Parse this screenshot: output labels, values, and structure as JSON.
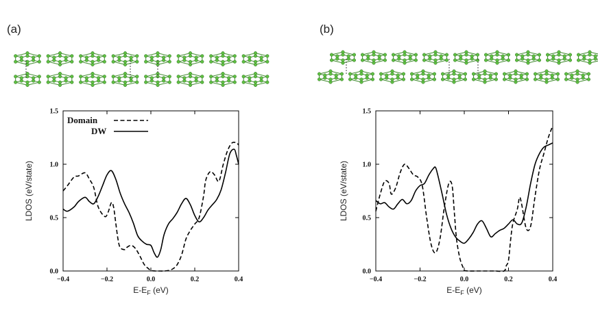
{
  "figure": {
    "panels": [
      {
        "label": "(a)"
      },
      {
        "label": "(b)"
      }
    ],
    "colors": {
      "curve": "#000000",
      "atom": "#5fc043",
      "bond": "#3e8a2c"
    }
  },
  "chart_data": [
    {
      "type": "line",
      "panel": "(a)",
      "xlabel": "E-E",
      "xlabel_sub": "F",
      "xlabel_unit": " (eV)",
      "ylabel": "LDOS (eV/state)",
      "xlim": [
        -0.4,
        0.4
      ],
      "ylim": [
        0.0,
        1.5
      ],
      "xticks": [
        -0.4,
        -0.2,
        0.0,
        0.2,
        0.4
      ],
      "xtick_labels": [
        "−0.4",
        "−0.2",
        "0.0",
        "0.2",
        "0.4"
      ],
      "yticks": [
        0.0,
        0.5,
        1.0,
        1.5
      ],
      "ytick_labels": [
        "0.0",
        "0.5",
        "1.0",
        "1.5"
      ],
      "legend": "top-left",
      "series": [
        {
          "name": "Domain",
          "style": "dashed",
          "x": [
            -0.4,
            -0.38,
            -0.35,
            -0.33,
            -0.3,
            -0.28,
            -0.26,
            -0.24,
            -0.21,
            -0.195,
            -0.18,
            -0.17,
            -0.16,
            -0.15,
            -0.14,
            -0.12,
            -0.11,
            -0.09,
            -0.07,
            -0.05,
            -0.03,
            -0.01,
            0.0,
            0.02,
            0.04,
            0.06,
            0.08,
            0.1,
            0.12,
            0.14,
            0.16,
            0.18,
            0.2,
            0.22,
            0.24,
            0.25,
            0.27,
            0.29,
            0.31,
            0.33,
            0.35,
            0.37,
            0.39,
            0.4
          ],
          "y": [
            0.75,
            0.8,
            0.88,
            0.89,
            0.92,
            0.86,
            0.78,
            0.6,
            0.51,
            0.55,
            0.64,
            0.6,
            0.45,
            0.3,
            0.22,
            0.2,
            0.22,
            0.24,
            0.21,
            0.14,
            0.06,
            0.02,
            0.005,
            0.0,
            0.0,
            0.0,
            0.005,
            0.02,
            0.06,
            0.15,
            0.3,
            0.38,
            0.44,
            0.5,
            0.7,
            0.85,
            0.93,
            0.9,
            0.84,
            1.0,
            1.13,
            1.2,
            1.2,
            1.18
          ]
        },
        {
          "name": "DW",
          "style": "solid",
          "x": [
            -0.4,
            -0.38,
            -0.35,
            -0.33,
            -0.3,
            -0.28,
            -0.26,
            -0.24,
            -0.22,
            -0.2,
            -0.18,
            -0.16,
            -0.14,
            -0.12,
            -0.1,
            -0.08,
            -0.06,
            -0.04,
            -0.02,
            0.0,
            0.015,
            0.03,
            0.045,
            0.06,
            0.08,
            0.1,
            0.12,
            0.14,
            0.16,
            0.18,
            0.2,
            0.22,
            0.24,
            0.26,
            0.28,
            0.3,
            0.32,
            0.34,
            0.36,
            0.38,
            0.39,
            0.4
          ],
          "y": [
            0.58,
            0.56,
            0.6,
            0.65,
            0.69,
            0.65,
            0.63,
            0.7,
            0.8,
            0.9,
            0.94,
            0.86,
            0.73,
            0.63,
            0.55,
            0.45,
            0.33,
            0.28,
            0.25,
            0.24,
            0.17,
            0.13,
            0.2,
            0.34,
            0.44,
            0.49,
            0.55,
            0.63,
            0.68,
            0.62,
            0.52,
            0.46,
            0.5,
            0.57,
            0.62,
            0.67,
            0.76,
            0.92,
            1.1,
            1.14,
            1.08,
            1.0
          ]
        }
      ]
    },
    {
      "type": "line",
      "panel": "(b)",
      "xlabel": "E-E",
      "xlabel_sub": "F",
      "xlabel_unit": " (eV)",
      "ylabel": "LDOS (eV/state)",
      "xlim": [
        -0.4,
        0.4
      ],
      "ylim": [
        0.0,
        1.5
      ],
      "xticks": [
        -0.4,
        -0.2,
        0.0,
        0.2,
        0.4
      ],
      "xtick_labels": [
        "−0.4",
        "−0.2",
        "0.0",
        "0.2",
        "0.4"
      ],
      "yticks": [
        0.0,
        0.5,
        1.0,
        1.5
      ],
      "ytick_labels": [
        "0.0",
        "0.5",
        "1.0",
        "1.5"
      ],
      "series": [
        {
          "name": "Domain",
          "style": "dashed",
          "x": [
            -0.4,
            -0.38,
            -0.36,
            -0.34,
            -0.33,
            -0.31,
            -0.29,
            -0.27,
            -0.25,
            -0.23,
            -0.21,
            -0.19,
            -0.17,
            -0.15,
            -0.13,
            -0.11,
            -0.09,
            -0.07,
            -0.055,
            -0.045,
            -0.035,
            -0.02,
            -0.005,
            0.0,
            0.02,
            0.06,
            0.1,
            0.14,
            0.18,
            0.19,
            0.2,
            0.21,
            0.22,
            0.24,
            0.25,
            0.26,
            0.28,
            0.3,
            0.32,
            0.34,
            0.36,
            0.38,
            0.4
          ],
          "y": [
            0.56,
            0.72,
            0.84,
            0.82,
            0.72,
            0.78,
            0.92,
            1.0,
            0.96,
            0.9,
            0.88,
            0.8,
            0.5,
            0.25,
            0.17,
            0.3,
            0.6,
            0.82,
            0.8,
            0.55,
            0.3,
            0.12,
            0.03,
            0.005,
            0.0,
            0.0,
            0.0,
            0.0,
            0.0,
            0.05,
            0.1,
            0.3,
            0.45,
            0.58,
            0.69,
            0.62,
            0.4,
            0.42,
            0.7,
            0.95,
            1.1,
            1.25,
            1.36
          ]
        },
        {
          "name": "DW",
          "style": "solid",
          "x": [
            -0.4,
            -0.38,
            -0.36,
            -0.34,
            -0.32,
            -0.3,
            -0.28,
            -0.26,
            -0.24,
            -0.22,
            -0.2,
            -0.18,
            -0.16,
            -0.14,
            -0.13,
            -0.12,
            -0.1,
            -0.08,
            -0.06,
            -0.04,
            -0.02,
            0.0,
            0.02,
            0.04,
            0.06,
            0.08,
            0.1,
            0.12,
            0.14,
            0.16,
            0.18,
            0.2,
            0.22,
            0.24,
            0.26,
            0.28,
            0.3,
            0.32,
            0.34,
            0.36,
            0.38,
            0.4
          ],
          "y": [
            0.66,
            0.63,
            0.64,
            0.6,
            0.58,
            0.63,
            0.67,
            0.63,
            0.66,
            0.75,
            0.8,
            0.82,
            0.9,
            0.96,
            0.97,
            0.9,
            0.72,
            0.53,
            0.4,
            0.32,
            0.28,
            0.26,
            0.3,
            0.36,
            0.44,
            0.47,
            0.4,
            0.32,
            0.35,
            0.38,
            0.4,
            0.44,
            0.48,
            0.44,
            0.45,
            0.6,
            0.82,
            1.0,
            1.1,
            1.16,
            1.18,
            1.2
          ]
        }
      ]
    }
  ]
}
